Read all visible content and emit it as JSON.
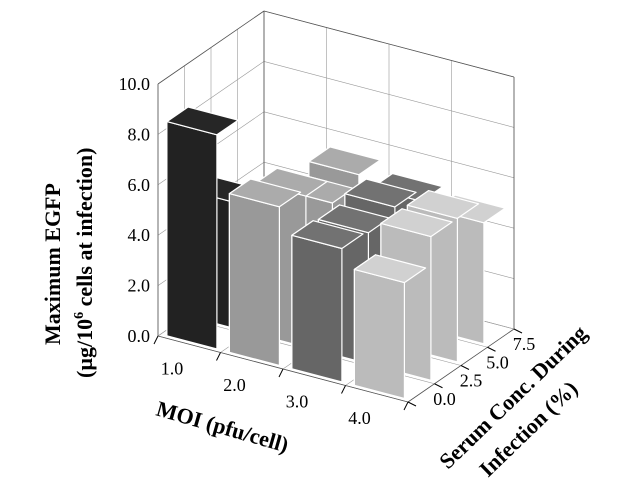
{
  "chart_data": {
    "type": "bar",
    "subtype": "3d-bar",
    "title": "",
    "xlabel": "MOI (pfu/cell)",
    "ylabel": "Serum Conc. During Infection (%)",
    "zlabel_line1": "Maximum EGFP",
    "zlabel_line2_pre": "(µg/10",
    "zlabel_line2_sup": "6",
    "zlabel_line2_post": " cells at infection)",
    "x_categories": [
      "1.0",
      "2.0",
      "3.0",
      "4.0"
    ],
    "y_categories": [
      "0.0",
      "2.5",
      "5.0",
      "7.5"
    ],
    "z_ticks": [
      "0.0",
      "2.0",
      "4.0",
      "6.0",
      "8.0",
      "10.0"
    ],
    "zlim": [
      0,
      10
    ],
    "grid": true,
    "colors": {
      "moi_1": "#222222",
      "moi_2": "#999999",
      "moi_3": "#666666",
      "moi_4": "#bbbbbb"
    },
    "series": [
      {
        "x": "1.0",
        "values": [
          8.5,
          5.0,
          3.5,
          3.5
        ]
      },
      {
        "x": "2.0",
        "values": [
          6.3,
          6.0,
          5.0,
          5.4
        ]
      },
      {
        "x": "3.0",
        "values": [
          5.3,
          5.2,
          5.5,
          5.0
        ]
      },
      {
        "x": "4.0",
        "values": [
          4.6,
          5.7,
          5.7,
          4.8
        ]
      }
    ]
  }
}
